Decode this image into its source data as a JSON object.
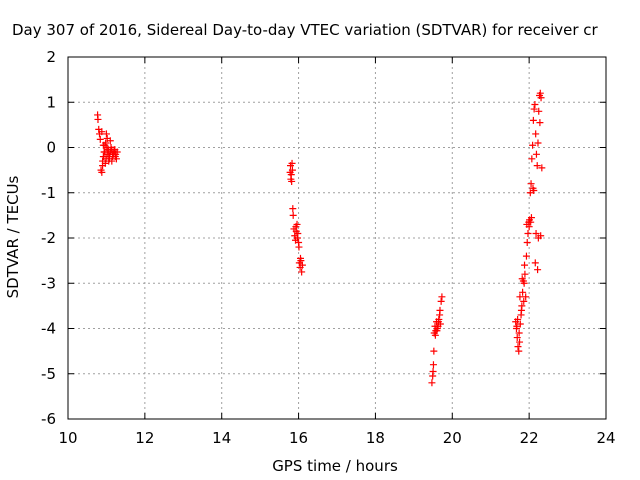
{
  "chart_data": {
    "type": "scatter",
    "title": "Day 307 of 2016, Sidereal Day-to-day VTEC variation (SDTVAR) for receiver cr",
    "xlabel": "GPS time / hours",
    "ylabel": "SDTVAR / TECUs",
    "xlim": [
      10,
      24
    ],
    "ylim": [
      -6,
      2
    ],
    "xticks": [
      10,
      12,
      14,
      16,
      18,
      20,
      22,
      24
    ],
    "yticks": [
      -6,
      -5,
      -4,
      -3,
      -2,
      -1,
      0,
      1,
      2
    ],
    "grid": true,
    "marker": "+",
    "color": "#ff0000",
    "series": [
      {
        "name": "SDTVAR",
        "x": [
          10.77,
          10.78,
          10.8,
          10.82,
          10.84,
          10.86,
          10.88,
          10.9,
          10.92,
          10.94,
          10.96,
          10.98,
          11.0,
          11.02,
          11.04,
          11.06,
          11.08,
          11.1,
          11.12,
          11.14,
          11.16,
          11.18,
          11.2,
          11.22,
          11.24,
          11.26,
          11.28,
          10.9,
          10.93,
          10.96,
          10.99,
          11.02,
          11.05,
          11.08,
          11.11,
          11.14,
          11.17,
          11.2,
          11.23,
          10.88,
          10.92,
          10.97,
          11.01,
          11.06,
          11.1,
          15.78,
          15.79,
          15.8,
          15.81,
          15.82,
          15.83,
          15.84,
          15.85,
          15.86,
          15.88,
          15.9,
          15.92,
          15.94,
          15.96,
          15.98,
          16.0,
          16.02,
          16.04,
          16.06,
          16.08,
          16.1,
          15.93,
          15.97,
          16.01,
          16.05,
          19.47,
          19.49,
          19.5,
          19.51,
          19.52,
          19.53,
          19.55,
          19.57,
          19.59,
          19.61,
          19.63,
          19.65,
          19.67,
          19.69,
          19.71,
          19.73,
          19.56,
          19.6,
          19.64,
          19.68,
          21.65,
          21.67,
          21.69,
          21.71,
          21.73,
          21.75,
          21.77,
          21.79,
          21.81,
          21.83,
          21.85,
          21.87,
          21.89,
          21.91,
          21.93,
          21.95,
          21.97,
          21.99,
          22.01,
          22.03,
          22.05,
          22.07,
          22.09,
          22.11,
          22.13,
          22.15,
          22.17,
          22.19,
          22.21,
          22.23,
          22.25,
          22.27,
          22.29,
          22.31,
          22.33,
          21.7,
          21.76,
          21.82,
          21.88,
          21.94,
          22.0,
          22.06,
          22.12,
          22.18,
          22.24,
          22.3,
          21.68,
          21.74,
          21.8,
          21.86,
          22.04,
          22.1,
          22.16,
          22.22,
          22.28
        ],
        "y": [
          0.72,
          0.62,
          0.4,
          0.3,
          0.18,
          -0.5,
          -0.55,
          -0.4,
          -0.2,
          -0.1,
          0.05,
          0.1,
          0.3,
          0.2,
          -0.05,
          -0.15,
          -0.25,
          -0.1,
          0.0,
          -0.05,
          -0.2,
          -0.15,
          -0.1,
          -0.05,
          -0.15,
          -0.25,
          -0.1,
          -0.3,
          -0.2,
          -0.1,
          -0.25,
          -0.15,
          -0.05,
          -0.2,
          -0.1,
          -0.3,
          -0.15,
          -0.05,
          -0.2,
          0.35,
          0.05,
          -0.35,
          0.0,
          -0.3,
          0.15,
          -0.55,
          -0.4,
          -0.7,
          -0.6,
          -0.75,
          -0.35,
          -0.5,
          -1.35,
          -1.5,
          -1.8,
          -1.95,
          -2.05,
          -1.85,
          -1.7,
          -1.9,
          -2.1,
          -2.55,
          -2.65,
          -2.5,
          -2.75,
          -2.6,
          -1.75,
          -2.0,
          -2.2,
          -2.45,
          -5.2,
          -5.05,
          -4.95,
          -4.8,
          -4.5,
          -4.1,
          -3.95,
          -4.05,
          -3.85,
          -4.0,
          -3.95,
          -3.8,
          -3.7,
          -3.9,
          -3.4,
          -3.3,
          -4.15,
          -4.05,
          -3.85,
          -3.6,
          -3.85,
          -4.0,
          -4.2,
          -4.4,
          -4.5,
          -4.3,
          -3.9,
          -3.7,
          -3.5,
          -3.2,
          -2.95,
          -3.0,
          -2.8,
          -3.3,
          -2.4,
          -2.1,
          -1.9,
          -1.65,
          -1.6,
          -1.0,
          -0.8,
          -0.25,
          0.05,
          0.6,
          0.85,
          0.95,
          0.3,
          -0.15,
          -0.4,
          0.1,
          0.8,
          1.15,
          1.2,
          1.1,
          -0.45,
          -3.8,
          -3.3,
          -2.9,
          -2.6,
          -1.7,
          -1.75,
          -1.55,
          -0.95,
          -1.9,
          -2.0,
          -1.95,
          -3.95,
          -4.1,
          -3.6,
          -3.4,
          -1.65,
          -0.9,
          -2.55,
          -2.7,
          0.55
        ]
      }
    ]
  }
}
